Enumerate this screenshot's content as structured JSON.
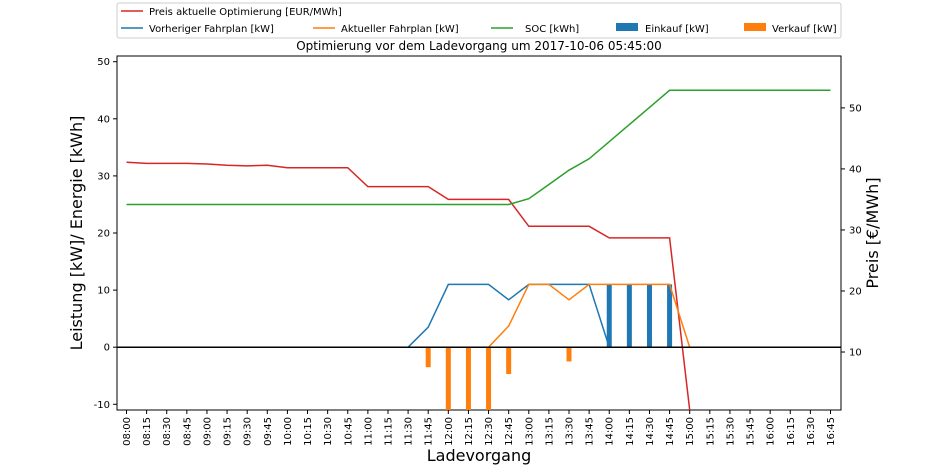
{
  "chart_data": {
    "type": "line",
    "title": "Optimierung vor dem Ladevorgang um 2017-10-06 05:45:00",
    "xlabel": "Ladevorgang",
    "ylabel_left": "Leistung [kW]/ Energie [kWh]",
    "ylabel_right": "Preis [€/MWh]",
    "ylim_left": [
      -11,
      51
    ],
    "yticks_left": [
      -10,
      0,
      10,
      20,
      30,
      40,
      50
    ],
    "ylim_right": [
      0.5,
      58.5
    ],
    "yticks_right": [
      10,
      20,
      30,
      40,
      50
    ],
    "grid": false,
    "legend_position": "top",
    "x": [
      "08:00",
      "08:15",
      "08:30",
      "08:45",
      "09:00",
      "09:15",
      "09:30",
      "09:45",
      "10:00",
      "10:15",
      "10:30",
      "10:45",
      "11:00",
      "11:15",
      "11:30",
      "11:45",
      "12:00",
      "12:15",
      "12:30",
      "12:45",
      "13:00",
      "13:15",
      "13:30",
      "13:45",
      "14:00",
      "14:15",
      "14:30",
      "14:45",
      "15:00",
      "15:15",
      "15:30",
      "15:45",
      "16:00",
      "16:15",
      "16:30",
      "16:45"
    ],
    "series": [
      {
        "name": "Preis aktuelle Optimierung [EUR/MWh]",
        "kind": "line",
        "axis": "right",
        "color": "#d62728",
        "values": [
          41.1,
          40.9,
          40.9,
          40.9,
          40.8,
          40.6,
          40.5,
          40.6,
          40.2,
          40.2,
          40.2,
          40.2,
          37.1,
          37.1,
          37.1,
          37.1,
          35.0,
          35.0,
          35.0,
          35.0,
          30.6,
          30.6,
          30.6,
          30.6,
          28.7,
          28.7,
          28.7,
          28.7,
          0.5,
          null,
          null,
          null,
          null,
          null,
          null,
          null
        ]
      },
      {
        "name": "Vorheriger Fahrplan [kW]",
        "kind": "line",
        "axis": "left",
        "color": "#1f77b4",
        "values": [
          0,
          0,
          0,
          0,
          0,
          0,
          0,
          0,
          0,
          0,
          0,
          0,
          0,
          0,
          0,
          3.5,
          11,
          11,
          11,
          8.3,
          11,
          11,
          11,
          11,
          0,
          0,
          0,
          0,
          0,
          0,
          0,
          0,
          0,
          0,
          0,
          0
        ]
      },
      {
        "name": "Aktueller Fahrplan [kW]",
        "kind": "line",
        "axis": "left",
        "color": "#ff7f0e",
        "values": [
          0,
          0,
          0,
          0,
          0,
          0,
          0,
          0,
          0,
          0,
          0,
          0,
          0,
          0,
          0,
          0,
          0,
          0,
          0,
          3.7,
          11,
          11,
          8.3,
          11,
          11,
          11,
          11,
          11,
          0,
          0,
          0,
          0,
          0,
          0,
          0,
          0
        ]
      },
      {
        "name": "SOC [kWh]",
        "kind": "line",
        "axis": "left",
        "color": "#2ca02c",
        "values": [
          25,
          25,
          25,
          25,
          25,
          25,
          25,
          25,
          25,
          25,
          25,
          25,
          25,
          25,
          25,
          25,
          25,
          25,
          25,
          25,
          26,
          28.5,
          31,
          33,
          36,
          39,
          42,
          45,
          45,
          45,
          45,
          45,
          45,
          45,
          45,
          45
        ]
      },
      {
        "name": "Einkauf [kW]",
        "kind": "bar",
        "axis": "left",
        "color": "#1f77b4",
        "values": [
          0,
          0,
          0,
          0,
          0,
          0,
          0,
          0,
          0,
          0,
          0,
          0,
          0,
          0,
          0,
          0,
          0,
          0,
          0,
          0,
          0,
          0,
          0,
          0,
          11,
          11,
          11,
          11,
          0,
          0,
          0,
          0,
          0,
          0,
          0,
          0
        ]
      },
      {
        "name": "Verkauf [kW]",
        "kind": "bar",
        "axis": "left",
        "color": "#ff7f0e",
        "values": [
          0,
          0,
          0,
          0,
          0,
          0,
          0,
          0,
          0,
          0,
          0,
          0,
          0,
          0,
          0,
          -3.5,
          -11,
          -11,
          -11,
          -4.7,
          0,
          0,
          -2.5,
          0,
          0,
          0,
          0,
          0,
          0,
          0,
          0,
          0,
          0,
          0,
          0,
          0
        ]
      }
    ]
  }
}
